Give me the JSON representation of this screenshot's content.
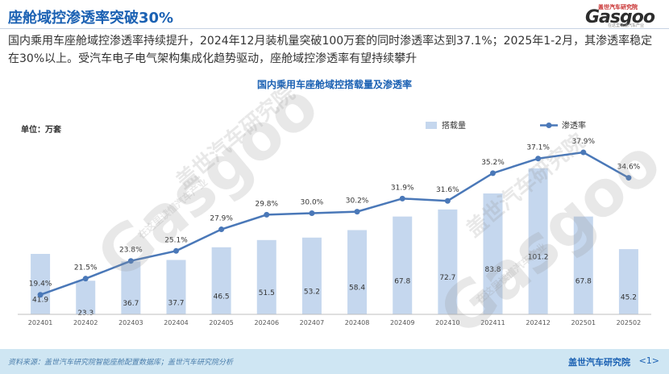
{
  "header": {
    "title": "座舱域控渗透率突破30%",
    "subtitle": "国内乘用车座舱域控渗透率持续提升，2024年12月装机量突破100万套的同时渗透率达到37.1%；2025年1-2月，其渗透率稳定在30%以上。受汽车电子电气架构集成化趋势驱动，座舱域控渗透率有望持续攀升"
  },
  "logo": {
    "cn": "盖世汽车研究院",
    "en": "Gasgoo",
    "tagline": "在这里读懂汽车产业"
  },
  "watermark": {
    "text": "Gasgoo",
    "cn": "盖世汽车研究院",
    "tagline": "在这里读懂汽车产业"
  },
  "chart_data": {
    "type": "bar",
    "title": "国内乘用车座舱域控搭载量及渗透率",
    "unit_label": "单位：万套",
    "categories": [
      "202401",
      "202402",
      "202403",
      "202404",
      "202405",
      "202406",
      "202407",
      "202408",
      "202409",
      "202410",
      "202411",
      "202412",
      "202501",
      "202502"
    ],
    "series": [
      {
        "name": "搭载量",
        "type": "bar",
        "axis": "left",
        "color": "#c5d7ee",
        "values": [
          41.9,
          23.3,
          36.7,
          37.7,
          46.5,
          51.5,
          53.2,
          58.4,
          67.8,
          72.7,
          83.8,
          101.2,
          67.8,
          45.2
        ],
        "labels": [
          "41.9",
          "23.3",
          "36.7",
          "37.7",
          "46.5",
          "51.5",
          "53.2",
          "58.4",
          "67.8",
          "72.7",
          "83.8",
          "101.2",
          "67.8",
          "45.2"
        ]
      },
      {
        "name": "渗透率",
        "type": "line",
        "axis": "right",
        "color": "#4a78b8",
        "values": [
          19.4,
          21.5,
          23.8,
          25.1,
          27.9,
          29.8,
          30.0,
          30.2,
          31.9,
          31.6,
          35.2,
          37.1,
          37.9,
          34.6
        ],
        "labels": [
          "19.4%",
          "21.5%",
          "23.8%",
          "25.1%",
          "27.9%",
          "29.8%",
          "30.0%",
          "30.2%",
          "31.9%",
          "31.6%",
          "35.2%",
          "37.1%",
          "37.9%",
          "34.6%"
        ]
      }
    ],
    "legend_position": "top-right",
    "grid": false
  },
  "footer": {
    "source": "资料来源：盖世汽车研究院智能座舱配置数据库；盖世汽车研究院分析",
    "brand": "盖世汽车研究院",
    "page": "<1>"
  }
}
